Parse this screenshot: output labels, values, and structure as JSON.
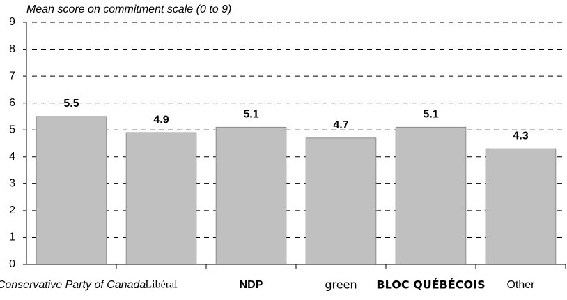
{
  "chart_data": {
    "type": "bar",
    "title": "Mean score on commitment scale (0 to 9)",
    "categories": [
      "Conservative Party of Canada",
      "Libéral",
      "NDP",
      "green",
      "BLOC QUÉBÉCOIS",
      "Other"
    ],
    "category_colors": [
      "#1a4e9e",
      "#d71920",
      "#f58220",
      "#3aa935",
      "#0a3d91",
      "#000000"
    ],
    "values": [
      5.5,
      4.9,
      5.1,
      4.7,
      5.1,
      4.3
    ],
    "color": "#c0c0c0",
    "ylim": [
      0,
      9
    ],
    "yticks": [
      0,
      1,
      2,
      3,
      4,
      5,
      6,
      7,
      8,
      9
    ],
    "grid": true
  }
}
